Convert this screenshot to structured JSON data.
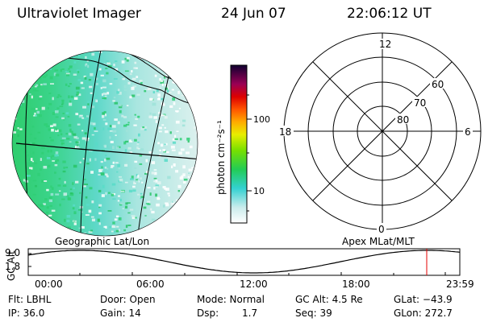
{
  "header": {
    "instrument": "Ultraviolet Imager",
    "date": "24 Jun 07",
    "time": "22:06:12 UT"
  },
  "left_map": {
    "label": "Geographic Lat/Lon"
  },
  "right_map": {
    "label": "Apex MLat/MLT",
    "mlt_labels": {
      "top": "12",
      "bottom": "0",
      "left": "18",
      "right": "6"
    },
    "lat_labels": [
      "60",
      "70",
      "80"
    ]
  },
  "colorbar": {
    "unit_label": "photon cm⁻²s⁻¹",
    "ticks": [
      "100",
      "10"
    ]
  },
  "timeline": {
    "y_axis_label": "GC Alt",
    "y_ticks": [
      "9.0",
      "1.8"
    ],
    "x_ticks": [
      "00:00",
      "06:00",
      "12:00",
      "18:00",
      "23:59"
    ],
    "marker_color": "#e60000"
  },
  "status": {
    "filter": "Flt: LBHL",
    "ip": "IP: 36.0",
    "door": "Door: Open",
    "gain": "Gain: 14",
    "mode": "Mode: Normal",
    "dsp_label": "Dsp:",
    "dsp_value": "1.7",
    "gc_alt": "GC Alt: 4.5 Re",
    "seq": "Seq: 39",
    "glat": "GLat: −43.9",
    "glon": "GLon: 272.7"
  }
}
